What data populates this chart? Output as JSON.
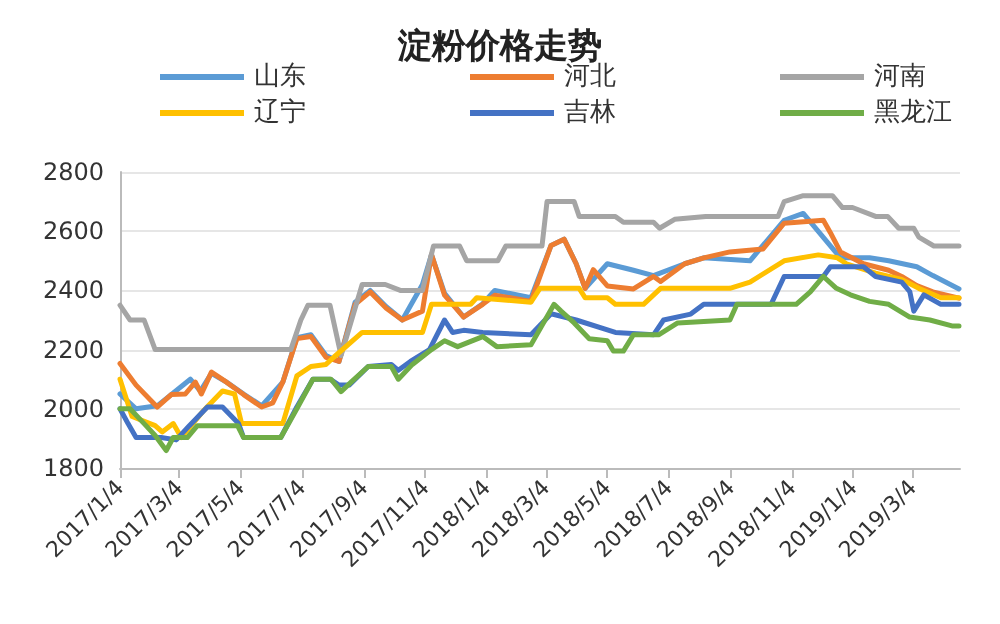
{
  "chart_data": {
    "type": "line",
    "title": "淀粉价格走势",
    "legend": "top",
    "grid": "y",
    "marker": "none",
    "line_style": "solid",
    "ylim": [
      1800,
      2800
    ],
    "yticks": [
      1800,
      2000,
      2200,
      2400,
      2600,
      2800
    ],
    "xlim": [
      "2017-01-04",
      "2019-04-20"
    ],
    "xticks": [
      {
        "value": "2017-01-04",
        "label": "2017/1/4"
      },
      {
        "value": "2017-03-04",
        "label": "2017/3/4"
      },
      {
        "value": "2017-05-04",
        "label": "2017/5/4"
      },
      {
        "value": "2017-07-04",
        "label": "2017/7/4"
      },
      {
        "value": "2017-09-04",
        "label": "2017/9/4"
      },
      {
        "value": "2017-11-04",
        "label": "2017/11/4"
      },
      {
        "value": "2018-01-04",
        "label": "2018/1/4"
      },
      {
        "value": "2018-03-04",
        "label": "2018/3/4"
      },
      {
        "value": "2018-05-04",
        "label": "2018/5/4"
      },
      {
        "value": "2018-07-04",
        "label": "2018/7/4"
      },
      {
        "value": "2018-09-04",
        "label": "2018/9/4"
      },
      {
        "value": "2018-11-04",
        "label": "2018/11/4"
      },
      {
        "value": "2019-01-04",
        "label": "2019/1/4"
      },
      {
        "value": "2019-03-04",
        "label": "2019/3/4"
      }
    ],
    "series": [
      {
        "name": "山东",
        "color": "#5b9bd5",
        "x": [
          "2017-01-04",
          "2017-01-20",
          "2017-02-10",
          "2017-03-15",
          "2017-03-25",
          "2017-04-05",
          "2017-04-20",
          "2017-05-07",
          "2017-05-25",
          "2017-06-15",
          "2017-06-29",
          "2017-07-13",
          "2017-07-28",
          "2017-08-10",
          "2017-08-26",
          "2017-09-10",
          "2017-09-26",
          "2017-10-12",
          "2017-11-01",
          "2017-11-10",
          "2017-11-23",
          "2017-12-12",
          "2017-12-31",
          "2018-01-12",
          "2018-02-17",
          "2018-03-09",
          "2018-03-22",
          "2018-04-03",
          "2018-04-12",
          "2018-05-04",
          "2018-05-30",
          "2018-06-19",
          "2018-07-20",
          "2018-08-08",
          "2018-09-23",
          "2018-10-27",
          "2018-11-15",
          "2018-12-22",
          "2019-01-20",
          "2019-02-08",
          "2019-03-08",
          "2019-03-24",
          "2019-04-19"
        ],
        "values": [
          2050,
          2000,
          2010,
          2100,
          2060,
          2120,
          2090,
          2050,
          2010,
          2090,
          2240,
          2250,
          2180,
          2160,
          2360,
          2400,
          2345,
          2300,
          2420,
          2521,
          2390,
          2310,
          2355,
          2400,
          2375,
          2552,
          2573,
          2490,
          2407,
          2490,
          2468,
          2450,
          2490,
          2510,
          2500,
          2637,
          2660,
          2510,
          2510,
          2500,
          2480,
          2450,
          2405
        ]
      },
      {
        "name": "河北",
        "color": "#ed7d31",
        "x": [
          "2017-01-04",
          "2017-01-20",
          "2017-02-10",
          "2017-02-24",
          "2017-03-10",
          "2017-03-20",
          "2017-03-26",
          "2017-04-05",
          "2017-04-20",
          "2017-05-07",
          "2017-05-25",
          "2017-06-05",
          "2017-06-15",
          "2017-06-29",
          "2017-07-13",
          "2017-07-28",
          "2017-08-10",
          "2017-08-26",
          "2017-09-10",
          "2017-09-26",
          "2017-10-12",
          "2017-11-01",
          "2017-11-10",
          "2017-11-23",
          "2017-12-12",
          "2017-12-31",
          "2018-01-12",
          "2018-02-17",
          "2018-03-09",
          "2018-03-22",
          "2018-04-03",
          "2018-04-12",
          "2018-04-20",
          "2018-05-04",
          "2018-05-30",
          "2018-06-19",
          "2018-06-26",
          "2018-07-20",
          "2018-08-08",
          "2018-09-03",
          "2018-10-06",
          "2018-10-27",
          "2018-12-05",
          "2018-12-12",
          "2018-12-22",
          "2019-01-14",
          "2019-02-08",
          "2019-02-21",
          "2019-03-08",
          "2019-03-24",
          "2019-04-19"
        ],
        "values": [
          2153,
          2080,
          2006,
          2048,
          2050,
          2090,
          2050,
          2124,
          2090,
          2048,
          2006,
          2020,
          2090,
          2237,
          2244,
          2174,
          2160,
          2353,
          2395,
          2340,
          2300,
          2330,
          2521,
          2384,
          2310,
          2353,
          2384,
          2363,
          2552,
          2573,
          2490,
          2407,
          2470,
          2415,
          2405,
          2447,
          2430,
          2490,
          2510,
          2530,
          2540,
          2627,
          2637,
          2595,
          2530,
          2490,
          2468,
          2447,
          2416,
          2395,
          2374
        ]
      },
      {
        "name": "河南",
        "color": "#a5a5a5",
        "x": [
          "2017-01-04",
          "2017-01-14",
          "2017-01-28",
          "2017-02-08",
          "2017-06-23",
          "2017-07-03",
          "2017-07-10",
          "2017-08-01",
          "2017-08-12",
          "2017-09-02",
          "2017-09-25",
          "2017-10-10",
          "2017-11-01",
          "2017-11-12",
          "2017-12-08",
          "2017-12-15",
          "2018-01-15",
          "2018-01-23",
          "2018-02-28",
          "2018-03-05",
          "2018-04-01",
          "2018-04-06",
          "2018-05-12",
          "2018-05-20",
          "2018-06-19",
          "2018-06-25",
          "2018-07-10",
          "2018-08-10",
          "2018-10-21",
          "2018-10-27",
          "2018-11-15",
          "2018-12-14",
          "2018-12-24",
          "2019-01-03",
          "2019-01-26",
          "2019-02-07",
          "2019-02-18",
          "2019-03-05",
          "2019-03-10",
          "2019-03-25",
          "2019-04-19"
        ],
        "values": [
          2350,
          2300,
          2300,
          2200,
          2200,
          2300,
          2350,
          2350,
          2180,
          2420,
          2420,
          2400,
          2400,
          2550,
          2550,
          2500,
          2500,
          2550,
          2550,
          2700,
          2700,
          2650,
          2650,
          2630,
          2630,
          2610,
          2640,
          2650,
          2650,
          2700,
          2720,
          2720,
          2680,
          2680,
          2650,
          2650,
          2610,
          2610,
          2580,
          2550,
          2550
        ]
      },
      {
        "name": "辽宁",
        "color": "#ffc000",
        "x": [
          "2017-01-04",
          "2017-01-16",
          "2017-02-08",
          "2017-02-15",
          "2017-02-26",
          "2017-03-06",
          "2017-03-29",
          "2017-04-16",
          "2017-04-28",
          "2017-05-05",
          "2017-06-15",
          "2017-06-29",
          "2017-07-13",
          "2017-07-28",
          "2017-08-05",
          "2017-09-02",
          "2017-11-01",
          "2017-11-10",
          "2017-12-19",
          "2017-12-25",
          "2018-02-17",
          "2018-02-26",
          "2018-04-06",
          "2018-04-12",
          "2018-05-04",
          "2018-05-12",
          "2018-06-09",
          "2018-06-26",
          "2018-09-03",
          "2018-09-23",
          "2018-10-27",
          "2018-11-30",
          "2018-12-19",
          "2018-12-28",
          "2019-01-26",
          "2019-02-21",
          "2019-03-10",
          "2019-04-01",
          "2019-04-19"
        ],
        "values": [
          2100,
          1974,
          1943,
          1922,
          1950,
          1903,
          1997,
          2060,
          2050,
          1950,
          1950,
          2111,
          2143,
          2150,
          2175,
          2258,
          2258,
          2353,
          2353,
          2375,
          2360,
          2407,
          2407,
          2375,
          2375,
          2353,
          2353,
          2407,
          2407,
          2428,
          2500,
          2520,
          2510,
          2490,
          2458,
          2437,
          2407,
          2375,
          2375
        ]
      },
      {
        "name": "吉林",
        "color": "#4472c4",
        "x": [
          "2017-01-04",
          "2017-01-12",
          "2017-01-20",
          "2017-02-14",
          "2017-03-01",
          "2017-03-14",
          "2017-04-01",
          "2017-04-16",
          "2017-05-02",
          "2017-05-07",
          "2017-06-13",
          "2017-06-29",
          "2017-07-15",
          "2017-08-01",
          "2017-08-10",
          "2017-08-20",
          "2017-09-08",
          "2017-10-01",
          "2017-10-08",
          "2017-10-20",
          "2017-11-08",
          "2017-11-23",
          "2017-12-01",
          "2017-12-12",
          "2017-12-31",
          "2018-02-17",
          "2018-03-09",
          "2018-04-03",
          "2018-05-12",
          "2018-06-19",
          "2018-06-29",
          "2018-07-26",
          "2018-08-08",
          "2018-10-14",
          "2018-10-27",
          "2018-12-05",
          "2018-12-12",
          "2019-01-14",
          "2019-01-26",
          "2019-02-21",
          "2019-03-01",
          "2019-03-05",
          "2019-03-15",
          "2019-04-01",
          "2019-04-19"
        ],
        "values": [
          2000,
          1950,
          1903,
          1903,
          1895,
          1943,
          2006,
          2006,
          1950,
          1903,
          1903,
          2006,
          2100,
          2100,
          2080,
          2080,
          2143,
          2150,
          2130,
          2160,
          2200,
          2300,
          2258,
          2265,
          2258,
          2250,
          2321,
          2300,
          2258,
          2250,
          2300,
          2320,
          2353,
          2353,
          2447,
          2447,
          2480,
          2480,
          2447,
          2428,
          2396,
          2330,
          2385,
          2353,
          2353
        ]
      },
      {
        "name": "黑龙江",
        "color": "#70ad47",
        "x": [
          "2017-01-04",
          "2017-01-14",
          "2017-01-28",
          "2017-02-08",
          "2017-02-19",
          "2017-02-26",
          "2017-03-12",
          "2017-03-22",
          "2017-05-01",
          "2017-05-07",
          "2017-06-13",
          "2017-06-29",
          "2017-07-15",
          "2017-08-02",
          "2017-08-12",
          "2017-08-22",
          "2017-09-08",
          "2017-10-01",
          "2017-10-08",
          "2017-10-22",
          "2017-11-10",
          "2017-11-23",
          "2017-12-06",
          "2017-12-31",
          "2018-01-14",
          "2018-02-17",
          "2018-03-12",
          "2018-03-19",
          "2018-04-01",
          "2018-04-16",
          "2018-05-04",
          "2018-05-10",
          "2018-05-20",
          "2018-05-30",
          "2018-06-24",
          "2018-07-13",
          "2018-09-03",
          "2018-09-10",
          "2018-11-08",
          "2018-11-22",
          "2018-12-05",
          "2018-12-18",
          "2019-01-01",
          "2019-01-20",
          "2019-02-08",
          "2019-03-01",
          "2019-03-21",
          "2019-04-12",
          "2019-04-19"
        ],
        "values": [
          2000,
          2000,
          1950,
          1910,
          1859,
          1903,
          1903,
          1943,
          1943,
          1903,
          1903,
          2000,
          2100,
          2100,
          2058,
          2090,
          2143,
          2143,
          2100,
          2150,
          2200,
          2230,
          2210,
          2244,
          2210,
          2216,
          2353,
          2330,
          2290,
          2237,
          2230,
          2195,
          2195,
          2250,
          2250,
          2290,
          2300,
          2353,
          2353,
          2395,
          2447,
          2407,
          2385,
          2363,
          2353,
          2310,
          2300,
          2280,
          2280
        ]
      }
    ]
  }
}
